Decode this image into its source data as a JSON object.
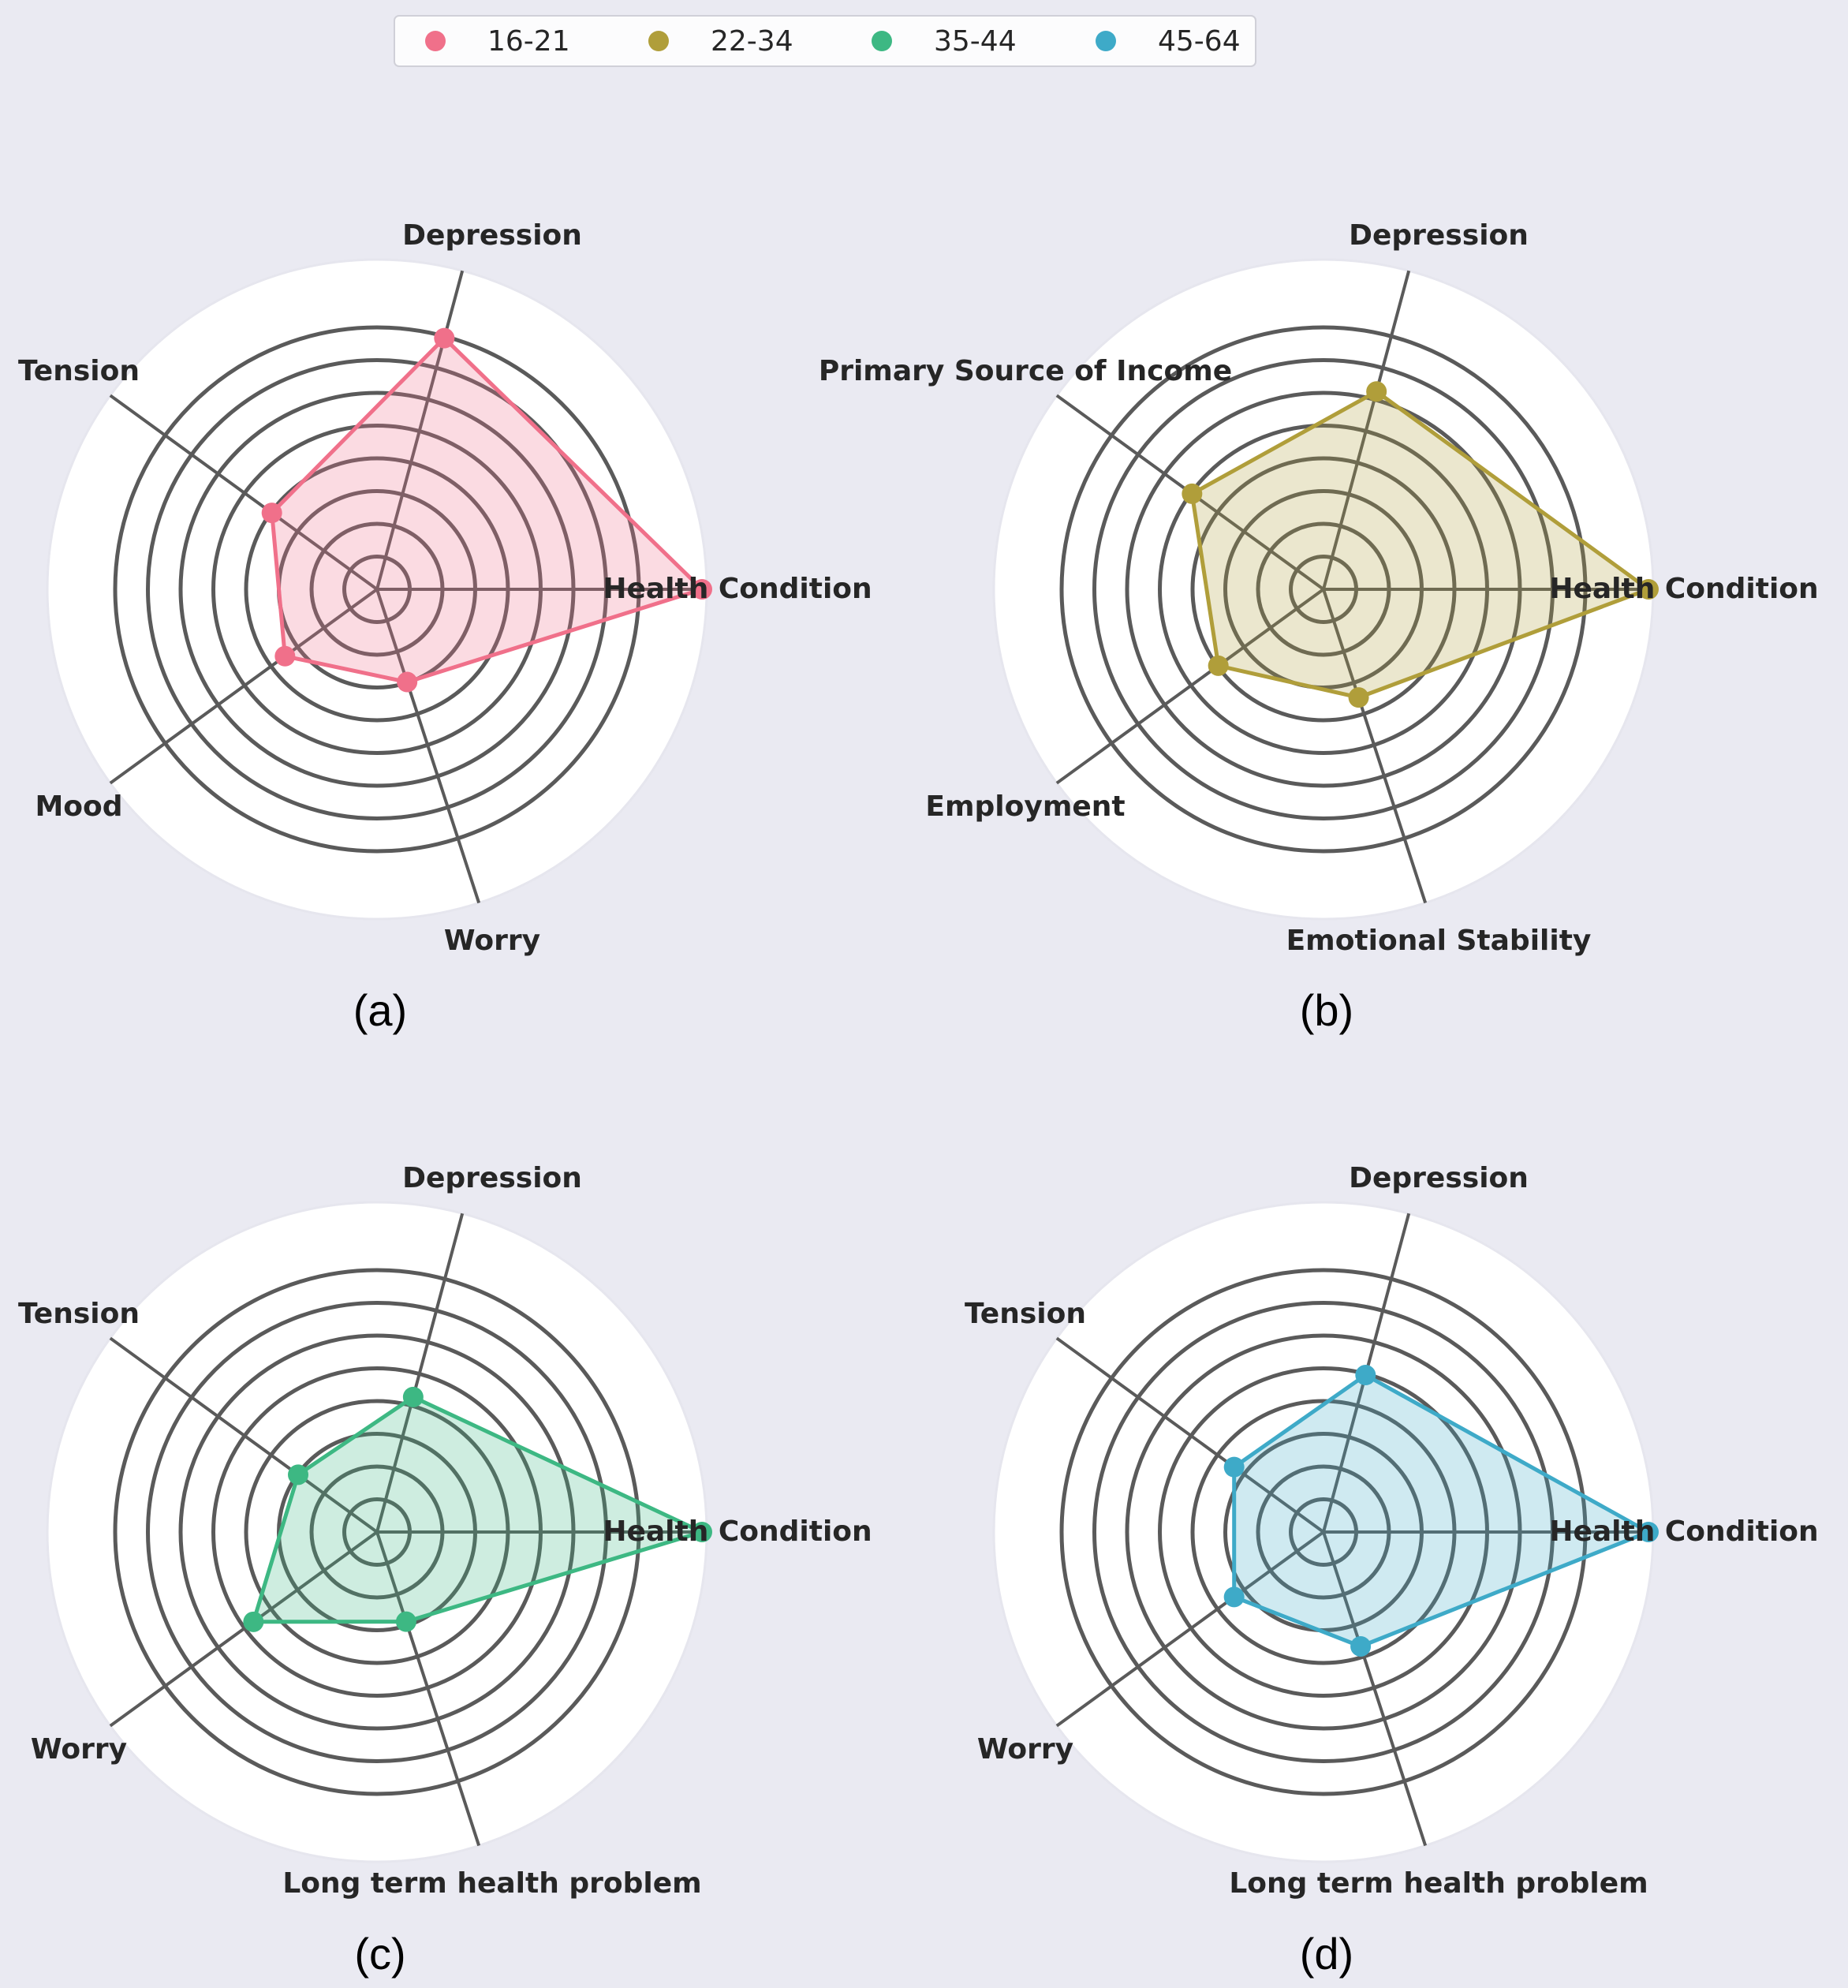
{
  "chart_data": [
    {
      "type": "radar",
      "panel_label": "(a)",
      "series_name": "16-21",
      "color": "#f0708a",
      "axes": [
        "Health Condition",
        "Depression",
        "Tension",
        "Mood",
        "Worry"
      ],
      "values": [
        1.0,
        0.8,
        0.4,
        0.35,
        0.3
      ],
      "rlim": [
        0,
        1
      ],
      "grid": true
    },
    {
      "type": "radar",
      "panel_label": "(b)",
      "series_name": "22-34",
      "color": "#b09e3a",
      "axes": [
        "Health Condition",
        "Depression",
        "Primary Source of Income",
        "Employment",
        "Emotional Stability"
      ],
      "values": [
        1.0,
        0.63,
        0.5,
        0.4,
        0.35
      ],
      "rlim": [
        0,
        1
      ],
      "grid": true
    },
    {
      "type": "radar",
      "panel_label": "(c)",
      "series_name": "35-44",
      "color": "#3db883",
      "axes": [
        "Health Condition",
        "Depression",
        "Tension",
        "Worry",
        "Long term health problem"
      ],
      "values": [
        1.0,
        0.43,
        0.3,
        0.47,
        0.29
      ],
      "rlim": [
        0,
        1
      ],
      "grid": true
    },
    {
      "type": "radar",
      "panel_label": "(d)",
      "series_name": "45-64",
      "color": "#3eaac8",
      "axes": [
        "Health Condition",
        "Depression",
        "Tension",
        "Worry",
        "Long term health problem"
      ],
      "values": [
        1.0,
        0.5,
        0.34,
        0.34,
        0.37
      ],
      "rlim": [
        0,
        1
      ],
      "grid": true
    }
  ],
  "legend": {
    "placement": "top-center",
    "items": [
      {
        "label": "16-21",
        "color": "#f0708a"
      },
      {
        "label": "22-34",
        "color": "#b09e3a"
      },
      {
        "label": "35-44",
        "color": "#3db883"
      },
      {
        "label": "45-64",
        "color": "#3eaac8"
      }
    ]
  }
}
